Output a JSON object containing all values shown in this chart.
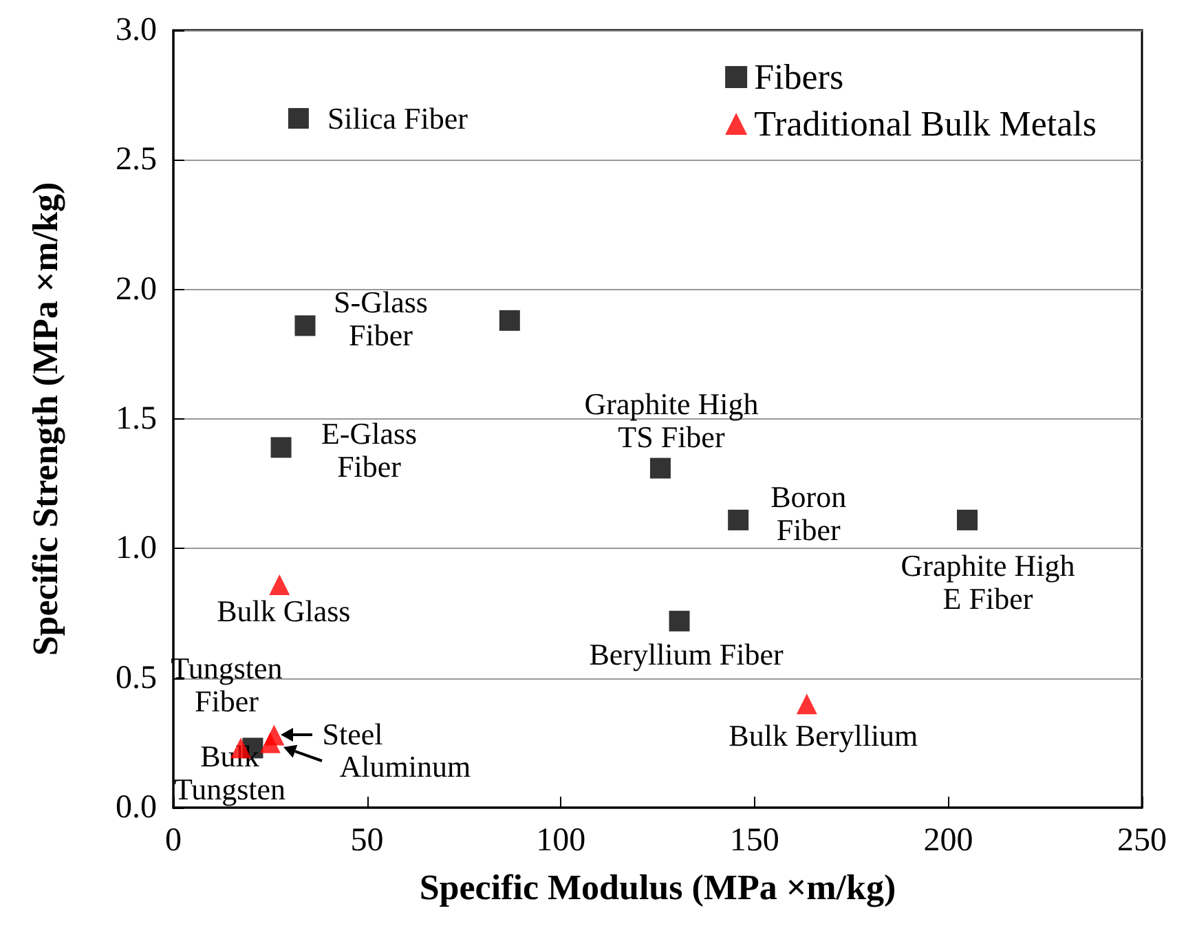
{
  "chart_data": {
    "type": "scatter",
    "xlabel": "Specific Modulus (MPa ×m/kg)",
    "ylabel": "Specific Strength (MPa ×m/kg)",
    "xlim": [
      0,
      250
    ],
    "xticks": [
      0,
      50,
      100,
      150,
      200,
      250
    ],
    "ylim": [
      0,
      3
    ],
    "yticks": [
      {
        "value": 0,
        "label": "0.0"
      },
      0.5,
      {
        "value": 1,
        "label": "1.0"
      },
      1.5,
      {
        "value": 2,
        "label": "2.0"
      },
      2.5,
      {
        "value": 3,
        "label": "3.0"
      }
    ],
    "grid": "y",
    "legend": "top right",
    "series": [
      {
        "name": "Fibers",
        "color": "#000000",
        "marker": "square",
        "x": [
          32.3,
          34,
          86.8,
          27.8,
          125.7,
          145.8,
          204.9,
          130.6,
          20.5
        ],
        "values": [
          2.66,
          1.86,
          1.88,
          1.39,
          1.31,
          1.11,
          1.11,
          0.72,
          0.23
        ]
      },
      {
        "name": "Traditional Bulk Metals",
        "color": "#ff0000",
        "marker": "triangle",
        "x": [
          27.4,
          163.5,
          17.4,
          26,
          25
        ],
        "values": [
          0.86,
          0.4,
          0.23,
          0.28,
          0.25
        ]
      }
    ],
    "annotations": [
      {
        "text": "Silica Fiber",
        "x": 32.3,
        "y": 2.66
      },
      {
        "text": "S-Glass\nFiber",
        "x": 34,
        "y": 1.86
      },
      {
        "text": "E-Glass\nFiber",
        "x": 27.8,
        "y": 1.39
      },
      {
        "text": "Graphite High\nTS Fiber",
        "x": 125.7,
        "y": 1.31
      },
      {
        "text": "Boron\nFiber",
        "x": 145.8,
        "y": 1.11
      },
      {
        "text": "Graphite High\nE Fiber",
        "x": 204.9,
        "y": 1.11
      },
      {
        "text": "Beryllium Fiber",
        "x": 130.6,
        "y": 0.72
      },
      {
        "text": "Tungsten\nFiber",
        "x": 20.5,
        "y": 0.23
      },
      {
        "text": "Bulk Glass",
        "x": 27.4,
        "y": 0.86
      },
      {
        "text": "Bulk Beryllium",
        "x": 163.5,
        "y": 0.4
      },
      {
        "text": "Bulk\nTungsten",
        "x": 17.4,
        "y": 0.23
      },
      {
        "text": "Steel",
        "x": 26,
        "y": 0.28
      },
      {
        "text": "Aluminum",
        "x": 25,
        "y": 0.25
      }
    ]
  }
}
